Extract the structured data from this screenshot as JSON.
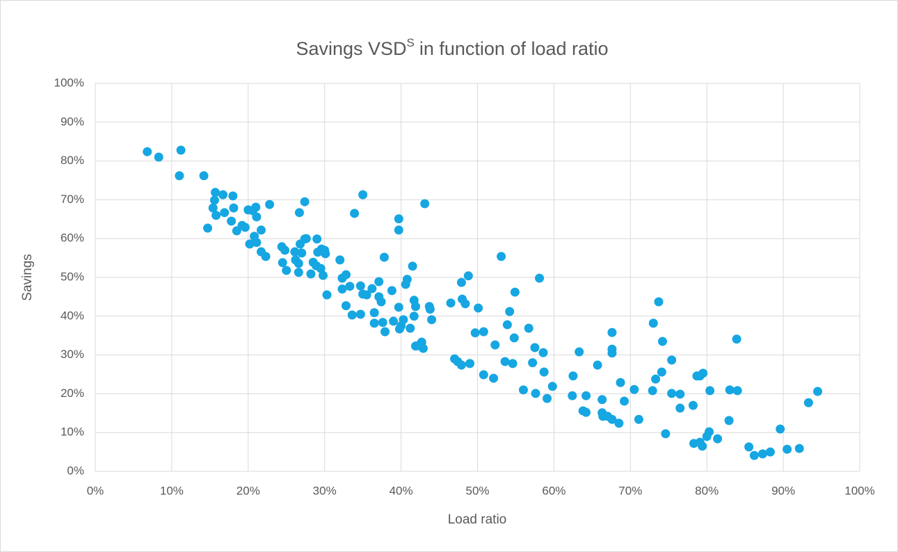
{
  "chart_data": {
    "type": "scatter",
    "title": [
      "Savings VSD",
      "S",
      "in function of load ratio"
    ],
    "x_label": "Load ratio",
    "y_label": "Savings",
    "color": "#16a6e2",
    "grid": true,
    "xlim": [
      0,
      100
    ],
    "ylim": [
      0,
      100
    ],
    "xticks": [
      {
        "value": 0,
        "label": "0%"
      },
      {
        "value": 10,
        "label": "10%"
      },
      {
        "value": 20,
        "label": "20%"
      },
      {
        "value": 30,
        "label": "30%"
      },
      {
        "value": 40,
        "label": "40%"
      },
      {
        "value": 50,
        "label": "50%"
      },
      {
        "value": 60,
        "label": "60%"
      },
      {
        "value": 70,
        "label": "70%"
      },
      {
        "value": 80,
        "label": "80%"
      },
      {
        "value": 90,
        "label": "90%"
      },
      {
        "value": 100,
        "label": "100%"
      }
    ],
    "yticks": [
      {
        "value": 0,
        "label": "0%"
      },
      {
        "value": 10,
        "label": "10%"
      },
      {
        "value": 20,
        "label": "20%"
      },
      {
        "value": 30,
        "label": "30%"
      },
      {
        "value": 40,
        "label": "40%"
      },
      {
        "value": 50,
        "label": "50%"
      },
      {
        "value": 60,
        "label": "60%"
      },
      {
        "value": 70,
        "label": "70%"
      },
      {
        "value": 80,
        "label": "80%"
      },
      {
        "value": 90,
        "label": "90%"
      },
      {
        "value": 100,
        "label": "100%"
      }
    ],
    "x": [
      6.8,
      8.3,
      11.2,
      11,
      14.2,
      14.7,
      15.7,
      15.6,
      15.4,
      15.8,
      16.7,
      16.9,
      18,
      18.1,
      17.8,
      18.5,
      19.2,
      19.6,
      20,
      20.6,
      21,
      21.1,
      20.8,
      21.1,
      20.2,
      21.7,
      21.7,
      22.3,
      22.8,
      24.4,
      24.8,
      24.5,
      25,
      26.1,
      26.2,
      26.6,
      26.6,
      26.7,
      27.4,
      26.8,
      27.4,
      27,
      27.6,
      28.2,
      28.5,
      28.9,
      29,
      29.1,
      29.6,
      30,
      30.1,
      29.5,
      29.8,
      30.3,
      32,
      32.3,
      32.8,
      33.3,
      32.3,
      32.8,
      33.6,
      33.9,
      34.7,
      34.7,
      35,
      35,
      35.5,
      36.2,
      36.5,
      36.5,
      37.1,
      37.1,
      37.4,
      37.6,
      37.9,
      37.8,
      38.8,
      39,
      39.7,
      39.7,
      39.7,
      39.8,
      40,
      40.3,
      40.6,
      40.8,
      41.2,
      41.5,
      41.7,
      41.9,
      41.7,
      41.9,
      42.2,
      42.7,
      42.9,
      43.1,
      43.7,
      43.8,
      44,
      46.5,
      47,
      47.4,
      47.9,
      47.9,
      48,
      48.4,
      48.8,
      49,
      49.7,
      50.1,
      50.8,
      50.8,
      52.1,
      52.3,
      53.1,
      53.6,
      53.9,
      54.2,
      54.6,
      54.8,
      54.9,
      56,
      56.7,
      57.2,
      57.5,
      57.6,
      58.1,
      58.6,
      58.7,
      59.1,
      59.8,
      62.4,
      62.5,
      63.3,
      63.8,
      64.2,
      64.2,
      65.7,
      66.3,
      66.3,
      66.4,
      67,
      67.6,
      67.6,
      67.6,
      67.6,
      68.5,
      68.7,
      69.2,
      70.5,
      71.1,
      72.9,
      73,
      73.3,
      73.7,
      74.2,
      74.1,
      74.6,
      75.4,
      75.4,
      76.5,
      76.5,
      78.2,
      78.3,
      78.7,
      79.1,
      79.1,
      79.4,
      79.5,
      80,
      80.3,
      80.4,
      81.4,
      82.9,
      83,
      84,
      83.9,
      85.5,
      86.2,
      87.3,
      88.3,
      89.6,
      90.5,
      92.1,
      93.3,
      94.5
    ],
    "y": [
      82.4,
      81,
      82.8,
      76.2,
      76.2,
      62.7,
      71.9,
      69.9,
      67.9,
      66,
      71.3,
      66.7,
      71,
      67.9,
      64.5,
      62,
      63.4,
      62.9,
      67.4,
      67.2,
      68.1,
      65.6,
      60.6,
      59,
      58.6,
      62.2,
      56.6,
      55.4,
      68.8,
      57.9,
      57,
      53.8,
      51.8,
      56.6,
      54.5,
      53.6,
      51.3,
      66.7,
      69.5,
      58.6,
      59.9,
      56.3,
      60,
      50.9,
      53.9,
      53,
      59.9,
      56.5,
      57.3,
      57,
      56.1,
      52.3,
      50.5,
      45.5,
      54.5,
      49.8,
      50.7,
      47.7,
      47,
      42.7,
      40.3,
      66.5,
      40.5,
      47.8,
      71.3,
      45.7,
      45.5,
      47.1,
      40.9,
      38.2,
      48.9,
      45,
      43.7,
      38.4,
      36,
      55.2,
      46.6,
      38.7,
      65.1,
      62.2,
      42.3,
      36.7,
      37.5,
      39.1,
      48.2,
      49.5,
      36.9,
      52.9,
      44.1,
      42.5,
      40,
      32.3,
      32.4,
      33.3,
      31.7,
      69,
      42.5,
      41.8,
      39.1,
      43.4,
      29,
      28.3,
      27.4,
      48.7,
      44.4,
      43.2,
      50.4,
      27.8,
      35.7,
      42.1,
      36,
      24.9,
      24,
      32.6,
      55.4,
      28.3,
      37.8,
      41.2,
      27.8,
      34.4,
      46.2,
      21,
      36.9,
      28,
      31.9,
      20.1,
      49.8,
      30.6,
      25.6,
      18.8,
      21.9,
      19.5,
      24.6,
      30.8,
      15.6,
      15.2,
      19.5,
      27.4,
      18.5,
      15.1,
      14.2,
      14.2,
      13.4,
      35.8,
      31.5,
      30.5,
      12.4,
      22.9,
      18.1,
      21.1,
      13.4,
      20.8,
      38.2,
      23.8,
      43.7,
      33.5,
      25.6,
      9.7,
      28.7,
      20.1,
      19.9,
      16.3,
      17,
      7.2,
      24.6,
      7.5,
      24.6,
      6.5,
      25.3,
      9,
      10.2,
      20.8,
      8.4,
      13.1,
      21,
      20.8,
      34.1,
      6.3,
      4.1,
      4.5,
      5,
      10.9,
      5.7,
      5.9,
      17.7,
      20.6
    ]
  }
}
